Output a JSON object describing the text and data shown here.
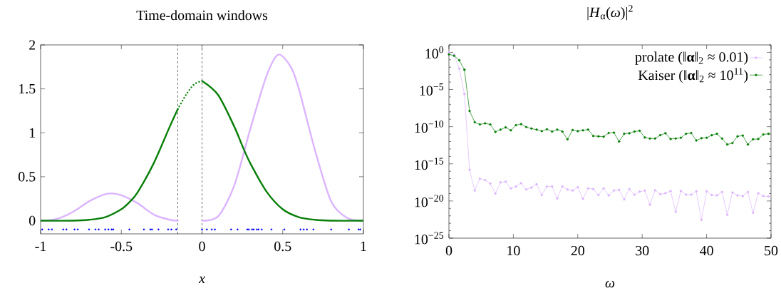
{
  "chart_data": [
    {
      "type": "line",
      "title": "Time-domain windows",
      "xlabel": "x",
      "xlim": [
        -1,
        1
      ],
      "ylim": [
        -0.15,
        2
      ],
      "xticks": [
        -1,
        -0.5,
        0,
        0.5,
        1
      ],
      "yticks": [
        0,
        0.5,
        1,
        1.5,
        2
      ],
      "ref_lines": [
        {
          "axis": "x",
          "value": -0.15,
          "color": "#000000",
          "line_style": "dashed"
        },
        {
          "axis": "x",
          "value": 0,
          "color": "#000000",
          "line_style": "dashed"
        }
      ],
      "series": [
        {
          "color": "#dcb4ff",
          "x": [
            -1,
            -0.9,
            -0.8,
            -0.7,
            -0.62,
            -0.566,
            -0.5,
            -0.4,
            -0.3,
            -0.2,
            -0.15,
            -0.07,
            0,
            0.1,
            0.2,
            0.3,
            0.4,
            0.473,
            0.55,
            0.6,
            0.7,
            0.8,
            0.9,
            1
          ],
          "values": [
            0,
            0.02,
            0.1,
            0.22,
            0.29,
            0.31,
            0.29,
            0.2,
            0.07,
            0.01,
            0,
            null,
            0,
            0.05,
            0.4,
            1.05,
            1.65,
            1.89,
            1.75,
            1.5,
            0.8,
            0.22,
            0.03,
            0
          ]
        },
        {
          "color": "#087f08",
          "x": [
            -1,
            -0.8,
            -0.7,
            -0.6,
            -0.5,
            -0.45,
            -0.4,
            -0.3,
            -0.2,
            -0.15,
            -0.07,
            0,
            0.1,
            0.2,
            0.25,
            0.3,
            0.4,
            0.5,
            0.6,
            0.7,
            0.8,
            1
          ],
          "values": [
            0,
            0,
            0.01,
            0.04,
            0.13,
            0.21,
            0.32,
            0.65,
            1.07,
            1.27,
            null,
            1.59,
            1.43,
            1.07,
            0.85,
            0.65,
            0.33,
            0.13,
            0.04,
            0.01,
            0,
            0
          ]
        },
        {
          "color": "#087f08",
          "line_style": "dotted",
          "x": [
            -0.15,
            -0.1,
            -0.05,
            0
          ],
          "values": [
            1.27,
            1.43,
            1.55,
            1.59
          ]
        },
        {
          "type": "scatter",
          "color": "#0000ff",
          "marker": "circle",
          "x": [
            -0.99,
            -0.95,
            -0.93,
            -0.86,
            -0.84,
            -0.79,
            -0.77,
            -0.7,
            -0.66,
            -0.64,
            -0.6,
            -0.58,
            -0.56,
            -0.55,
            -0.45,
            -0.36,
            -0.32,
            -0.31,
            -0.27,
            -0.21,
            -0.19,
            -0.16,
            0.0,
            0.03,
            0.06,
            0.08,
            0.18,
            0.22,
            0.28,
            0.29,
            0.31,
            0.32,
            0.34,
            0.35,
            0.37,
            0.43,
            0.51,
            0.61,
            0.63,
            0.65,
            0.69,
            0.8,
            0.91,
            0.97,
            0.98
          ],
          "values": [
            -0.1,
            -0.1,
            -0.1,
            -0.1,
            -0.1,
            -0.1,
            -0.1,
            -0.1,
            -0.1,
            -0.1,
            -0.1,
            -0.1,
            -0.1,
            -0.1,
            -0.1,
            -0.1,
            -0.1,
            -0.1,
            -0.1,
            -0.1,
            -0.1,
            -0.1,
            -0.1,
            -0.1,
            -0.1,
            -0.1,
            -0.1,
            -0.1,
            -0.1,
            -0.1,
            -0.1,
            -0.1,
            -0.1,
            -0.1,
            -0.1,
            -0.1,
            -0.1,
            -0.1,
            -0.1,
            -0.1,
            -0.1,
            -0.1,
            -0.1,
            -0.1,
            -0.1
          ]
        }
      ]
    },
    {
      "type": "line",
      "title": "|*H*$_{α}$(*ω*)|$^{2}$",
      "xlabel": "ω",
      "xlim": [
        0,
        50
      ],
      "ylim": [
        1e-25,
        10
      ],
      "log": "y",
      "legend": "top right",
      "xticks": [
        0,
        10,
        20,
        30,
        40,
        50
      ],
      "yticks": [
        {
          "value": 1,
          "label": "10$^{0}$"
        },
        {
          "value": 1e-05,
          "label": "10$^{−5}$"
        },
        {
          "value": 1e-10,
          "label": "10$^{−10}$"
        },
        {
          "value": 1e-15,
          "label": "10$^{−15}$"
        },
        {
          "value": 1e-20,
          "label": "10$^{−20}$"
        },
        {
          "value": 1e-25,
          "label": "10$^{−25}$"
        }
      ],
      "x": [
        0,
        0.8,
        1.6,
        2.4,
        3.2,
        4,
        4.8,
        5.6,
        6.4,
        7.2,
        8,
        8.8,
        9.6,
        10.4,
        11.2,
        12,
        12.8,
        13.6,
        14.4,
        15.2,
        16,
        16.8,
        17.6,
        18.4,
        19.2,
        20,
        20.8,
        21.6,
        22.4,
        23.2,
        24,
        24.8,
        25.6,
        26.4,
        27.2,
        28,
        28.8,
        29.6,
        30.4,
        31.2,
        32,
        32.8,
        33.6,
        34.4,
        35.2,
        36,
        36.8,
        37.6,
        38.4,
        39.2,
        40,
        40.8,
        41.6,
        42.4,
        43.2,
        44,
        44.8,
        45.6,
        46.4,
        47.2,
        48,
        48.8,
        49.6
      ],
      "series": [
        {
          "name": "prolate (‖**α**‖$_{2}$ ≈ 0.01)",
          "color": "#dcb4ff",
          "marker": "circle",
          "values": [
            1,
            0.45,
            0.0063,
            2.5e-06,
            1.6e-16,
            2.5e-19,
            1e-17,
            6.3e-18,
            2.2e-18,
            1e-19,
            3.2e-18,
            4e-18,
            5e-19,
            8.9e-19,
            2.5e-18,
            3.5e-19,
            6.3e-19,
            1.8e-18,
            6.3e-20,
            8.9e-19,
            8.9e-19,
            2.2e-20,
            8.9e-19,
            3.5e-19,
            2.5e-19,
            7.1e-19,
            2e-20,
            5e-19,
            4e-19,
            6.3e-20,
            5e-19,
            5.6e-20,
            2.5e-19,
            3.2e-19,
            1.6e-20,
            4e-19,
            7.1e-20,
            1.8e-19,
            2.5e-19,
            3.2e-21,
            2.8e-19,
            8e-20,
            1.1e-19,
            2.2e-19,
            3.5e-22,
            2.2e-19,
            7.1e-20,
            7.1e-20,
            2e-19,
            2.8e-23,
            2e-19,
            6.3e-20,
            5.6e-20,
            1.6e-19,
            1.4e-22,
            1.4e-19,
            5.6e-20,
            4.5e-20,
            1.6e-19,
            2.5e-22,
            1.1e-19,
            4.5e-20,
            4e-20
          ]
        },
        {
          "name": "Kaiser (‖**α**‖$_{2}$ ≈ 10$^{11}$)",
          "color": "#087f08",
          "marker": "circle",
          "values": [
            0.54,
            0.35,
            0.085,
            0.0046,
            1.3e-08,
            4e-10,
            2e-10,
            2.8e-10,
            2e-10,
            2e-11,
            4e-11,
            8e-11,
            3.2e-11,
            1.6e-10,
            2.2e-10,
            8.9e-11,
            5.6e-11,
            4e-11,
            2.5e-11,
            4.5e-11,
            2.2e-11,
            4e-11,
            2.2e-11,
            2e-12,
            3.5e-11,
            2.5e-11,
            3.2e-11,
            4e-11,
            5.6e-12,
            5e-12,
            4.5e-12,
            1.4e-11,
            1.6e-11,
            1e-12,
            1.1e-11,
            1.3e-11,
            2.2e-11,
            2.8e-11,
            3.5e-12,
            2.5e-12,
            2.5e-12,
            7.1e-12,
            1.3e-11,
            2.2e-12,
            2.5e-12,
            3.2e-12,
            1.1e-11,
            1.4e-11,
            1.4e-12,
            2.8e-12,
            3.2e-12,
            7.1e-12,
            1.1e-11,
            2.5e-12,
            4e-13,
            6.3e-13,
            5e-12,
            6.3e-12,
            4e-13,
            2e-12,
            2.2e-12,
            8.9e-12,
            1.1e-11
          ]
        }
      ]
    }
  ]
}
